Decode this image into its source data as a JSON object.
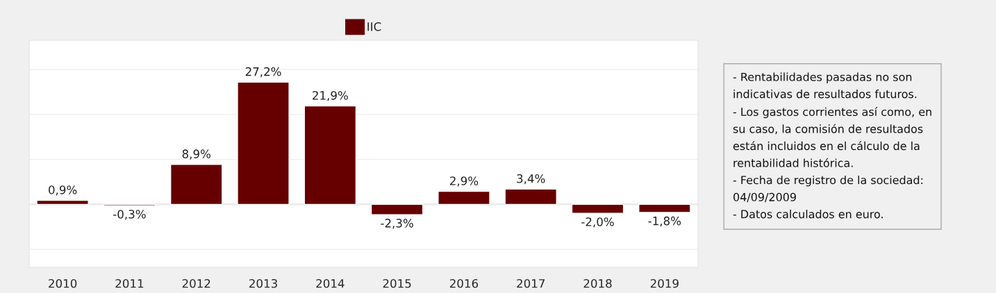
{
  "chart_data": {
    "type": "bar",
    "categories": [
      "2010",
      "2011",
      "2012",
      "2013",
      "2014",
      "2015",
      "2016",
      "2017",
      "2018",
      "2019"
    ],
    "series": [
      {
        "name": "IIC",
        "color": "#660000",
        "values": [
          0.9,
          -0.3,
          8.9,
          27.2,
          21.9,
          -2.3,
          2.9,
          3.4,
          -2.0,
          -1.8
        ],
        "value_labels": [
          "0,9%",
          "-0,3%",
          "8,9%",
          "27,2%",
          "21,9%",
          "-2,3%",
          "2,9%",
          "3,4%",
          "-2,0%",
          "-1,8%"
        ]
      }
    ],
    "ylim": [
      -14,
      36.5
    ],
    "yticks": [
      {
        "value": -10,
        "label": null
      },
      {
        "value": 0,
        "label": null
      },
      {
        "value": 10,
        "label": null
      },
      {
        "value": 20,
        "label": null
      },
      {
        "value": 30,
        "label": null
      }
    ],
    "tick_labels": "x",
    "grid": "y",
    "legend": "top",
    "annotations": [
      "- Rentabilidades pasadas no son\nindicativas de resultados futuros.\n- Los gastos corrientes así como, en\nsu caso, la comisión de resultados\nestán incluidos en el cálculo de la\nrentabilidad histórica.\n- Fecha de registro de la sociedad:\n04/09/2009\n- Datos calculados en euro."
    ]
  }
}
